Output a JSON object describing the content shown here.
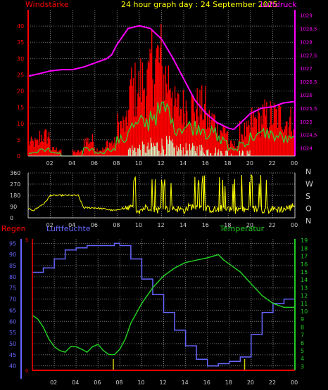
{
  "title": "24 hour graph day : 24 September 2025",
  "colors": {
    "wind": "#ff0000",
    "gust": "#ff0000",
    "wind_avg": "#33cc33",
    "wind_white": "#ccffcc",
    "pressure": "#ff00ff",
    "direction": "#ffff00",
    "humidity": "#6666ff",
    "temperature": "#22cc22",
    "rain": "#ff0000",
    "grid": "#777777",
    "axis_text": "#cccccc"
  },
  "chart_data": [
    {
      "type": "bar",
      "label_left": "Windstärke",
      "label_right": "Luftdruck",
      "x_ticks": [
        "02",
        "04",
        "06",
        "08",
        "10",
        "12",
        "14",
        "16",
        "18",
        "20",
        "22",
        "00"
      ],
      "y_left_ticks": [
        "0",
        "5",
        "10",
        "15",
        "20",
        "25",
        "30",
        "35",
        "40"
      ],
      "y_left_range": [
        0,
        45
      ],
      "y_right_ticks": [
        "1024",
        "1024,5",
        "1025",
        "1025,5",
        "1026",
        "1026,5",
        "1027",
        "1027,5",
        "1028",
        "1028,5",
        "1029"
      ],
      "y_right_range": [
        1023.7,
        1029.2
      ],
      "wind_gust_hourly": [
        6,
        9,
        3,
        0,
        2,
        7,
        3,
        6,
        14,
        30,
        33,
        43,
        35,
        22,
        23,
        22,
        16,
        12,
        5,
        11,
        16,
        18,
        18,
        16
      ],
      "wind_avg_hourly": [
        1,
        2,
        1,
        0,
        0,
        2,
        1,
        2,
        5,
        9,
        10,
        13,
        14,
        9,
        9,
        9,
        7,
        5,
        2,
        4,
        6,
        7,
        6,
        5
      ],
      "pressure": {
        "x": [
          0,
          1,
          2,
          3,
          4,
          5,
          6,
          7,
          7.5,
          8,
          9,
          10,
          10.5,
          11,
          12,
          13,
          14,
          15,
          16,
          17,
          18,
          18.5,
          19,
          20,
          21,
          22,
          23,
          24
        ],
        "y": [
          1026.7,
          1026.8,
          1026.9,
          1026.95,
          1026.95,
          1027.05,
          1027.2,
          1027.35,
          1027.5,
          1027.9,
          1028.5,
          1028.6,
          1028.55,
          1028.5,
          1028.1,
          1027.4,
          1026.6,
          1025.8,
          1025.3,
          1024.95,
          1024.75,
          1024.7,
          1024.9,
          1025.3,
          1025.5,
          1025.55,
          1025.7,
          1025.75
        ]
      }
    },
    {
      "type": "scatter",
      "label_right_axis": [
        "N",
        "W",
        "S",
        "O",
        "N"
      ],
      "y_ticks": [
        "0",
        "90",
        "180",
        "270",
        "360"
      ],
      "y_range": [
        0,
        360
      ],
      "x_ticks": [
        "02",
        "04",
        "06",
        "08",
        "10",
        "12",
        "14",
        "16",
        "18",
        "20",
        "22",
        "00"
      ],
      "direction": {
        "x": [
          0,
          0.5,
          1,
          1.5,
          2,
          2.5,
          3,
          3.5,
          4,
          4.5,
          5,
          5.5,
          6,
          6.5,
          7,
          7.5,
          8,
          8.5,
          9,
          9.5,
          10,
          10.5,
          11,
          11.5,
          12,
          12.5,
          13,
          13.5,
          14,
          14.5,
          15,
          15.5,
          16,
          16.5,
          17,
          17.5,
          18,
          18.5,
          19,
          19.5,
          20,
          20.5,
          21,
          21.5,
          22,
          22.5,
          23,
          23.5,
          24
        ],
        "y": [
          70,
          60,
          90,
          120,
          180,
          180,
          180,
          180,
          180,
          180,
          80,
          80,
          80,
          75,
          70,
          60,
          60,
          80,
          90,
          70,
          60,
          80,
          90,
          60,
          70,
          70,
          80,
          70,
          60,
          90,
          90,
          80,
          70,
          70,
          60,
          80,
          80,
          60,
          70,
          60,
          70,
          70,
          70,
          60,
          70,
          70,
          70,
          80,
          100
        ]
      }
    },
    {
      "type": "line",
      "label_rain": "Regen",
      "label_humidity": "Luftfeuchte",
      "label_temperature": "Temperatur",
      "x_ticks": [
        "02",
        "04",
        "06",
        "08",
        "10",
        "12",
        "14",
        "16",
        "18",
        "20",
        "22",
        "00"
      ],
      "y_left_ticks": [
        "40",
        "45",
        "50",
        "55",
        "60",
        "65",
        "70",
        "75",
        "80",
        "85",
        "90",
        "95"
      ],
      "y_left_range": [
        38,
        97
      ],
      "y_rain_ticks": [
        "0",
        "5"
      ],
      "y_right_ticks": [
        "3",
        "4",
        "5",
        "6",
        "7",
        "8",
        "9",
        "10",
        "11",
        "12",
        "13",
        "14",
        "15",
        "16",
        "17",
        "18",
        "19"
      ],
      "y_right_range": [
        2.5,
        19.2
      ],
      "humidity": {
        "x": [
          0,
          1,
          2,
          3,
          4,
          5,
          6,
          7,
          7.5,
          8,
          9,
          10,
          11,
          12,
          13,
          14,
          15,
          16,
          16.5,
          17,
          18,
          19,
          20,
          21,
          22,
          23,
          24
        ],
        "y": [
          82,
          84,
          88,
          92,
          93,
          94,
          94,
          94,
          95,
          94,
          88,
          79,
          72,
          64,
          56,
          49,
          43,
          40,
          40,
          41,
          42,
          44,
          54,
          64,
          68,
          70,
          71
        ]
      },
      "temperature": {
        "x": [
          0,
          0.5,
          1,
          1.5,
          2,
          2.5,
          3,
          3.5,
          4,
          4.5,
          5,
          5.5,
          6,
          6.5,
          7,
          7.5,
          8,
          8.5,
          9,
          10,
          11,
          12,
          13,
          14,
          15,
          16,
          17,
          17.5,
          18,
          19,
          20,
          21,
          22,
          23,
          24
        ],
        "y": [
          9.5,
          9.0,
          8.0,
          6.5,
          5.5,
          5.0,
          4.8,
          5.5,
          5.5,
          5.2,
          4.8,
          5.5,
          5.8,
          5.0,
          4.5,
          4.5,
          5.2,
          6.5,
          8.5,
          11.0,
          13.0,
          14.5,
          15.5,
          16.2,
          16.5,
          16.8,
          17.2,
          16.5,
          16.0,
          15.0,
          13.5,
          12.0,
          11.0,
          10.5,
          10.5
        ]
      },
      "rain_events_hour": [
        7.4,
        19.4
      ]
    }
  ]
}
